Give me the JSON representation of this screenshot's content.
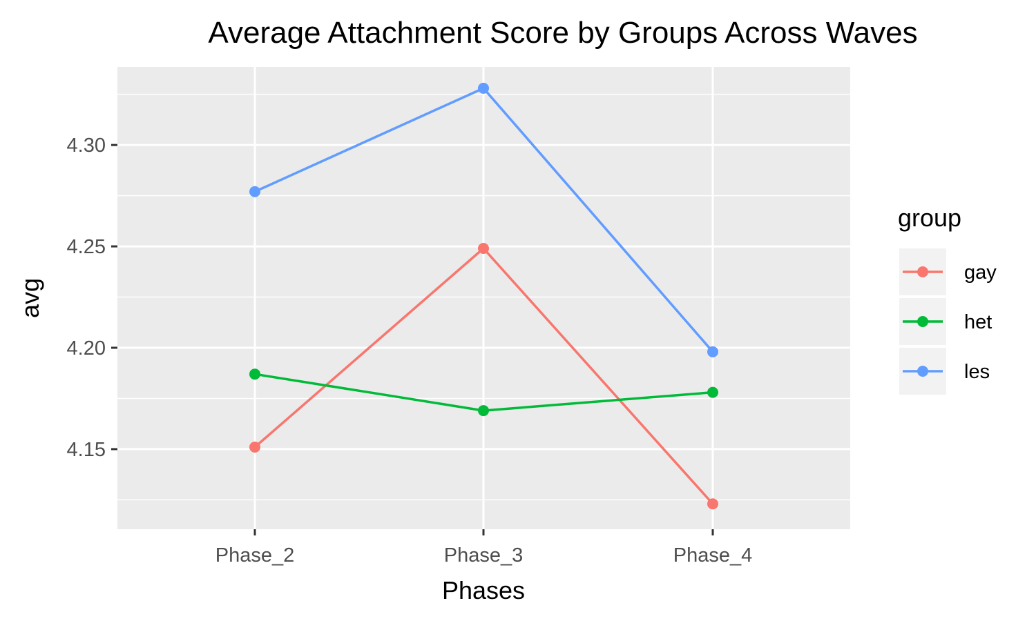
{
  "chart_data": {
    "type": "line",
    "title": "Average Attachment Score by Groups Across Waves",
    "xlabel": "Phases",
    "ylabel": "avg",
    "categories": [
      "Phase_2",
      "Phase_3",
      "Phase_4"
    ],
    "yticks": [
      4.15,
      4.2,
      4.25,
      4.3
    ],
    "ytick_labels": [
      "4.15",
      "4.20",
      "4.25",
      "4.30"
    ],
    "ylim": [
      4.1105,
      4.3385
    ],
    "grid": true,
    "legend": {
      "title": "group",
      "position": "right"
    },
    "series": [
      {
        "name": "gay",
        "color": "#F8766D",
        "values": [
          4.151,
          4.249,
          4.123
        ]
      },
      {
        "name": "het",
        "color": "#00BA38",
        "values": [
          4.187,
          4.169,
          4.178
        ]
      },
      {
        "name": "les",
        "color": "#619CFF",
        "values": [
          4.277,
          4.328,
          4.198
        ]
      }
    ]
  }
}
